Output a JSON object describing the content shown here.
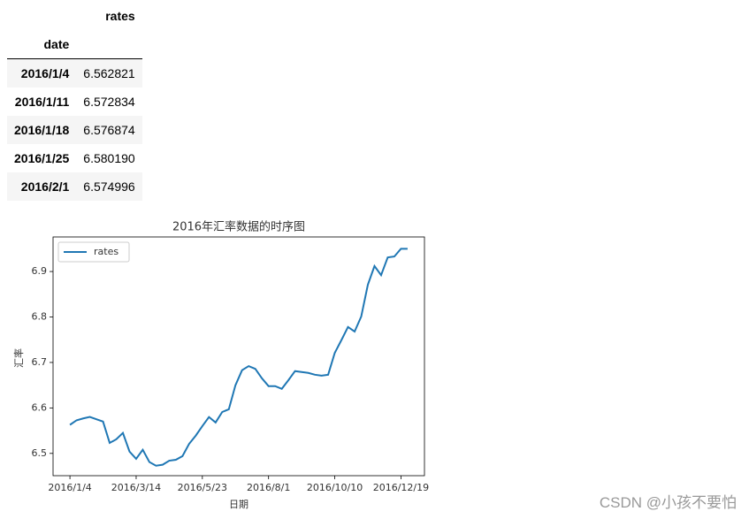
{
  "table": {
    "column": "rates",
    "index_name": "date",
    "rows": [
      [
        "2016/1/4",
        "6.562821"
      ],
      [
        "2016/1/11",
        "6.572834"
      ],
      [
        "2016/1/18",
        "6.576874"
      ],
      [
        "2016/1/25",
        "6.580190"
      ],
      [
        "2016/2/1",
        "6.574996"
      ]
    ]
  },
  "chart_data": {
    "type": "line",
    "title": "2016年汇率数据的时序图",
    "x_label": "日期",
    "y_label": "汇率",
    "x": [
      "2016/1/4",
      "2016/1/11",
      "2016/1/18",
      "2016/1/25",
      "2016/2/1",
      "2016/2/8",
      "2016/2/15",
      "2016/2/22",
      "2016/2/29",
      "2016/3/7",
      "2016/3/14",
      "2016/3/21",
      "2016/3/28",
      "2016/4/4",
      "2016/4/11",
      "2016/4/18",
      "2016/4/25",
      "2016/5/2",
      "2016/5/9",
      "2016/5/16",
      "2016/5/23",
      "2016/5/30",
      "2016/6/6",
      "2016/6/13",
      "2016/6/20",
      "2016/6/27",
      "2016/7/4",
      "2016/7/11",
      "2016/7/18",
      "2016/7/25",
      "2016/8/1",
      "2016/8/8",
      "2016/8/15",
      "2016/8/22",
      "2016/8/29",
      "2016/9/5",
      "2016/9/12",
      "2016/9/19",
      "2016/9/26",
      "2016/10/3",
      "2016/10/10",
      "2016/10/17",
      "2016/10/24",
      "2016/10/31",
      "2016/11/7",
      "2016/11/14",
      "2016/11/21",
      "2016/11/28",
      "2016/12/5",
      "2016/12/12",
      "2016/12/19",
      "2016/12/26"
    ],
    "series": [
      {
        "name": "rates",
        "color": "#1f77b4",
        "values": [
          6.5628,
          6.5728,
          6.5769,
          6.5802,
          6.575,
          6.57,
          6.523,
          6.531,
          6.545,
          6.504,
          6.488,
          6.508,
          6.481,
          6.473,
          6.475,
          6.484,
          6.486,
          6.494,
          6.521,
          6.539,
          6.56,
          6.58,
          6.568,
          6.591,
          6.597,
          6.65,
          6.683,
          6.692,
          6.686,
          6.665,
          6.648,
          6.648,
          6.642,
          6.661,
          6.681,
          6.679,
          6.677,
          6.673,
          6.671,
          6.673,
          6.721,
          6.749,
          6.778,
          6.768,
          6.801,
          6.871,
          6.912,
          6.892,
          6.931,
          6.933,
          6.95,
          6.95
        ]
      }
    ],
    "ylim": [
      6.451,
      6.976
    ],
    "yticks": [
      6.5,
      6.6,
      6.7,
      6.8,
      6.9
    ],
    "xticks": [
      "2016/1/4",
      "2016/3/14",
      "2016/5/23",
      "2016/8/1",
      "2016/10/10",
      "2016/12/19"
    ],
    "legend": "upper left",
    "grid": false
  },
  "watermark": "CSDN @小孩不要怕"
}
